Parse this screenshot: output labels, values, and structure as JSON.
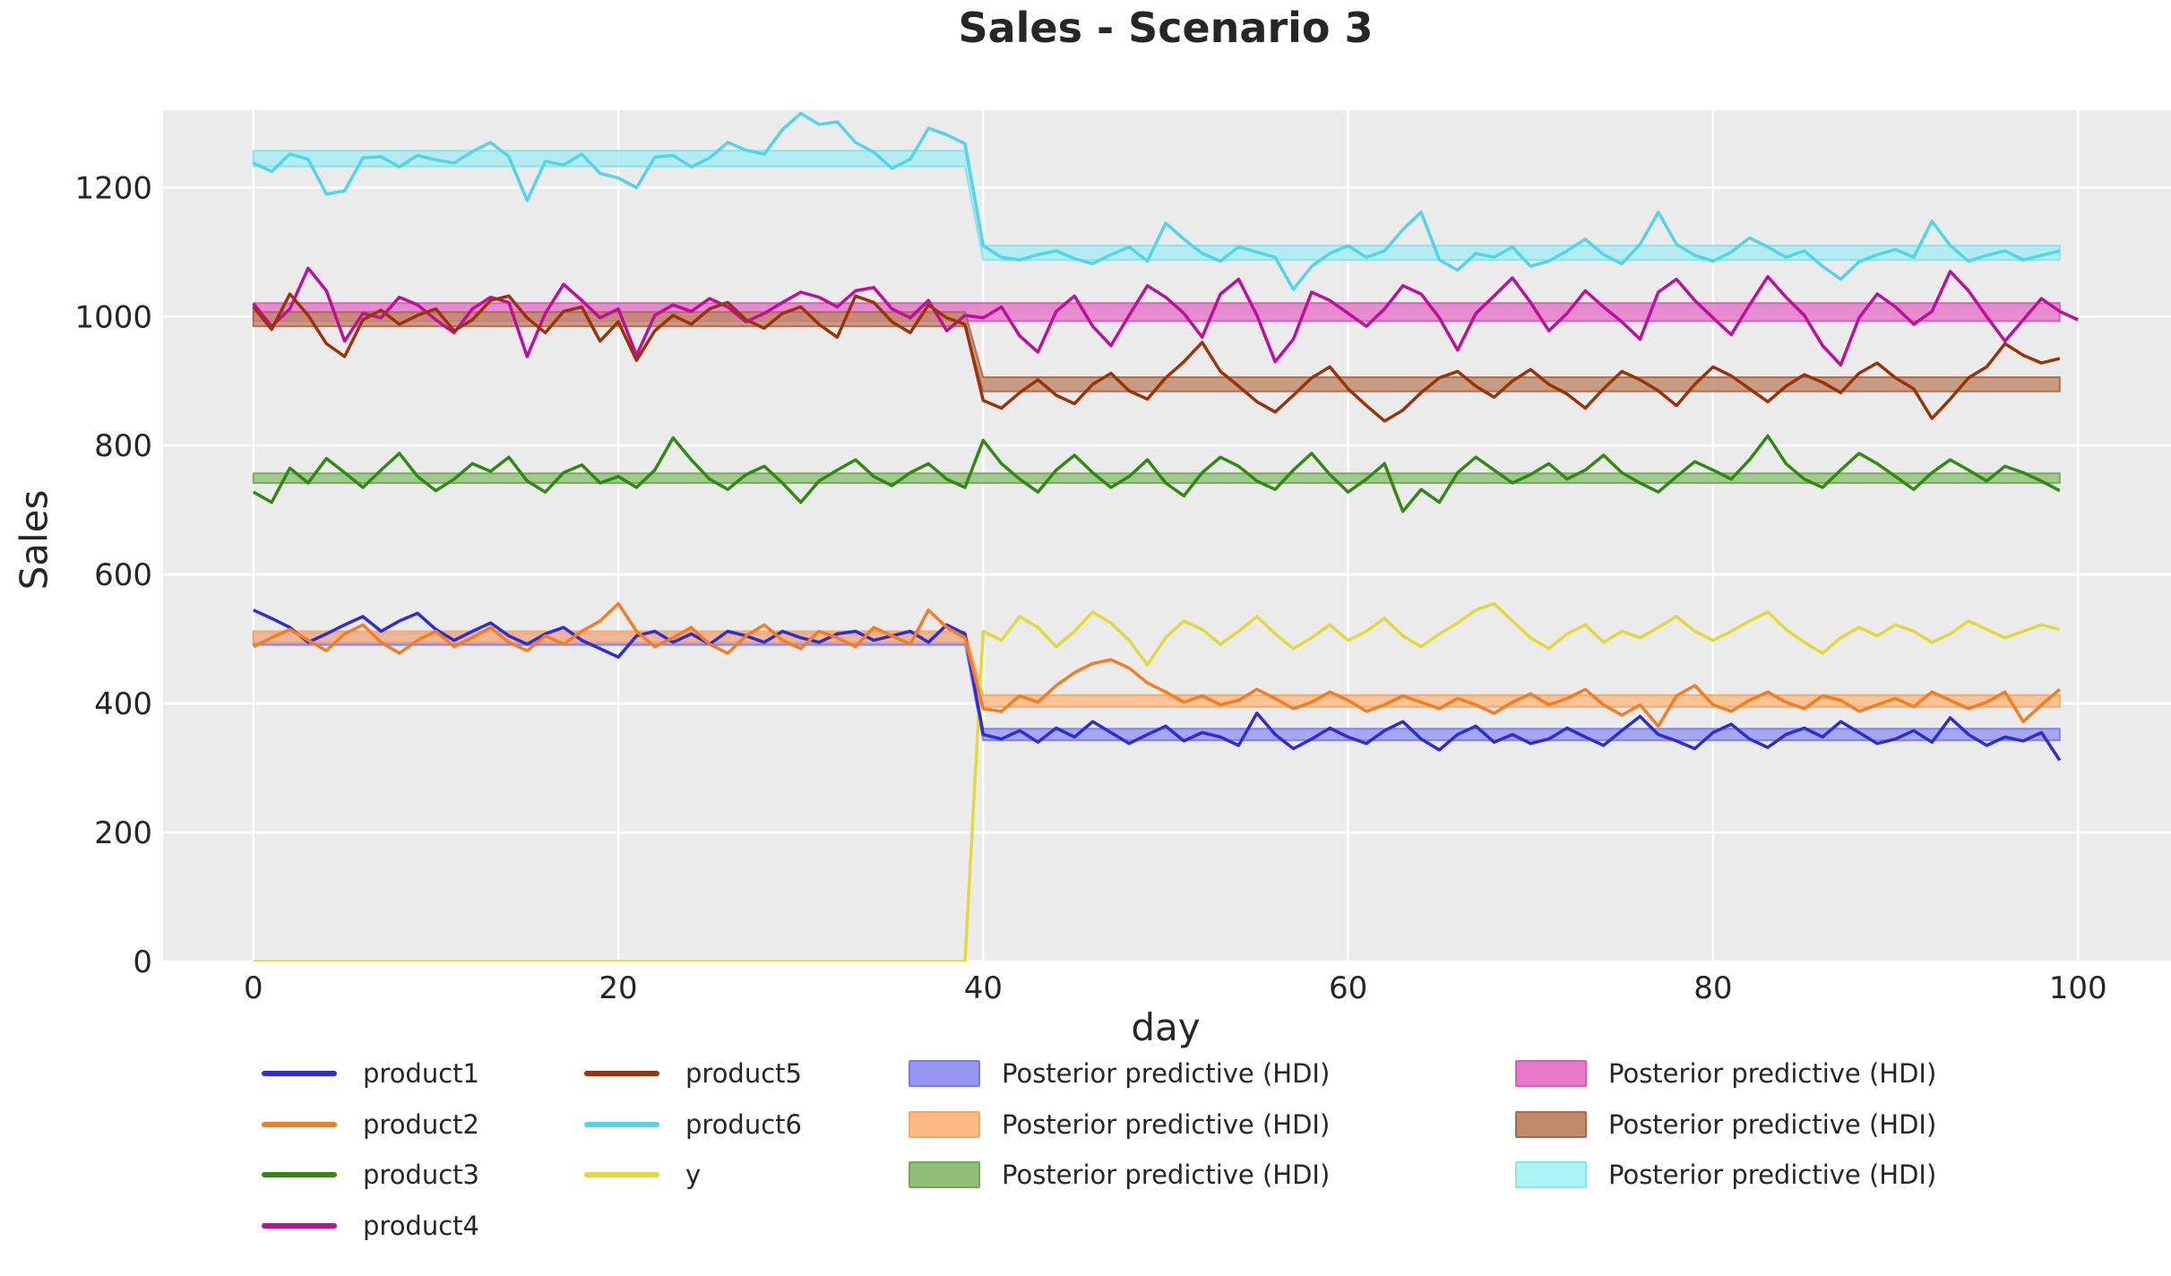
{
  "title": "Sales - Scenario 3",
  "axes": {
    "xlabel": "day",
    "ylabel": "Sales",
    "xticks": [
      0,
      20,
      40,
      60,
      80,
      100
    ],
    "yticks": [
      0,
      200,
      400,
      600,
      800,
      1000,
      1200
    ]
  },
  "colors": {
    "plot_bg": "#ebebeb",
    "grid": "#ffffff",
    "text": "#262626"
  },
  "chart_data": {
    "type": "line",
    "title": "Sales - Scenario 3",
    "xlabel": "day",
    "ylabel": "Sales",
    "xlim": [
      -4.95,
      105.1
    ],
    "ylim": [
      0,
      1320
    ],
    "xticks": [
      0,
      20,
      40,
      60,
      80,
      100
    ],
    "yticks": [
      0,
      200,
      400,
      600,
      800,
      1000,
      1200
    ],
    "grid": true,
    "legend_position": "below",
    "days": {
      "start": 0,
      "end": 99,
      "step": 1
    },
    "switch_day": 40,
    "series": [
      {
        "name": "product1",
        "color": "#2d2dd8",
        "values": [
          545,
          532,
          518,
          495,
          508,
          522,
          535,
          512,
          528,
          540,
          515,
          498,
          512,
          525,
          505,
          492,
          508,
          518,
          498,
          485,
          472,
          505,
          512,
          495,
          508,
          492,
          512,
          505,
          495,
          512,
          502,
          495,
          508,
          512,
          498,
          505,
          512,
          495,
          522,
          508,
          352,
          345,
          358,
          340,
          362,
          348,
          372,
          355,
          338,
          352,
          365,
          342,
          355,
          348,
          335,
          385,
          352,
          330,
          345,
          362,
          348,
          338,
          358,
          372,
          345,
          328,
          352,
          365,
          340,
          352,
          338,
          345,
          362,
          348,
          335,
          358,
          380,
          352,
          342,
          330,
          355,
          368,
          345,
          332,
          352,
          362,
          348,
          372,
          355,
          338,
          345,
          358,
          340,
          378,
          352,
          335,
          348,
          342,
          355,
          312
        ]
      },
      {
        "name": "product2",
        "color": "#f57d20",
        "values": [
          488,
          502,
          515,
          498,
          482,
          508,
          522,
          495,
          478,
          498,
          512,
          488,
          502,
          518,
          495,
          482,
          505,
          492,
          512,
          528,
          555,
          512,
          488,
          502,
          518,
          492,
          478,
          505,
          522,
          498,
          485,
          512,
          502,
          488,
          518,
          505,
          492,
          545,
          518,
          502,
          392,
          388,
          412,
          402,
          428,
          448,
          462,
          468,
          455,
          432,
          418,
          402,
          412,
          398,
          405,
          422,
          408,
          392,
          402,
          418,
          405,
          388,
          398,
          412,
          402,
          392,
          408,
          398,
          385,
          402,
          415,
          398,
          408,
          422,
          398,
          382,
          398,
          365,
          412,
          428,
          398,
          388,
          405,
          418,
          402,
          392,
          412,
          405,
          388,
          398,
          408,
          395,
          418,
          405,
          392,
          402,
          418,
          372,
          398,
          422
        ]
      },
      {
        "name": "product3",
        "color": "#2e8b0e",
        "values": [
          728,
          712,
          765,
          742,
          780,
          758,
          735,
          762,
          788,
          752,
          730,
          748,
          772,
          760,
          782,
          745,
          728,
          758,
          770,
          742,
          752,
          735,
          762,
          812,
          778,
          748,
          732,
          755,
          768,
          742,
          712,
          745,
          762,
          778,
          752,
          738,
          758,
          772,
          748,
          735,
          808,
          772,
          748,
          728,
          762,
          785,
          758,
          735,
          752,
          778,
          742,
          722,
          758,
          782,
          768,
          745,
          732,
          762,
          788,
          755,
          728,
          748,
          772,
          698,
          732,
          712,
          758,
          782,
          762,
          742,
          755,
          772,
          748,
          762,
          785,
          758,
          742,
          728,
          752,
          775,
          762,
          748,
          778,
          815,
          772,
          748,
          735,
          762,
          788,
          772,
          752,
          732,
          758,
          778,
          762,
          745,
          768,
          758,
          745,
          730
        ]
      },
      {
        "name": "product4",
        "color": "#c00d9e",
        "values": [
          1020,
          985,
          1012,
          1075,
          1040,
          962,
          1005,
          998,
          1030,
          1018,
          995,
          975,
          1012,
          1030,
          1022,
          938,
          1005,
          1050,
          1025,
          998,
          1012,
          940,
          1002,
          1018,
          1008,
          1028,
          1015,
          992,
          1005,
          1022,
          1038,
          1030,
          1015,
          1040,
          1045,
          1012,
          998,
          1025,
          978,
          1002,
          998,
          1015,
          970,
          945,
          1008,
          1032,
          985,
          955,
          1002,
          1048,
          1030,
          1005,
          968,
          1035,
          1058,
          1002,
          930,
          965,
          1038,
          1025,
          1005,
          985,
          1012,
          1048,
          1035,
          998,
          948,
          1005,
          1032,
          1060,
          1022,
          978,
          1005,
          1040,
          1015,
          992,
          965,
          1038,
          1058,
          1025,
          998,
          972,
          1018,
          1062,
          1030,
          1002,
          955,
          925,
          998,
          1035,
          1015,
          988,
          1008,
          1070,
          1040,
          1000,
          962,
          995,
          1028,
          1008,
          995
        ]
      },
      {
        "name": "product5",
        "color": "#9c3306",
        "values": [
          1015,
          980,
          1035,
          1002,
          958,
          938,
          995,
          1010,
          988,
          1002,
          1012,
          978,
          995,
          1025,
          1032,
          998,
          975,
          1008,
          1015,
          962,
          992,
          932,
          978,
          1002,
          988,
          1012,
          1022,
          995,
          982,
          1005,
          1015,
          988,
          968,
          1032,
          1022,
          992,
          975,
          1018,
          998,
          988,
          870,
          858,
          882,
          902,
          878,
          865,
          895,
          912,
          885,
          872,
          905,
          930,
          960,
          915,
          892,
          868,
          852,
          878,
          905,
          922,
          888,
          862,
          838,
          855,
          882,
          905,
          915,
          892,
          875,
          900,
          918,
          895,
          880,
          858,
          888,
          915,
          902,
          885,
          862,
          895,
          922,
          908,
          888,
          868,
          892,
          910,
          898,
          882,
          912,
          928,
          905,
          888,
          842,
          872,
          905,
          922,
          958,
          940,
          928,
          935
        ]
      },
      {
        "name": "product6",
        "color": "#50d5e9",
        "values": [
          1238,
          1225,
          1252,
          1244,
          1190,
          1195,
          1246,
          1248,
          1232,
          1250,
          1243,
          1238,
          1256,
          1270,
          1248,
          1180,
          1241,
          1235,
          1252,
          1222,
          1215,
          1200,
          1247,
          1250,
          1232,
          1246,
          1270,
          1258,
          1252,
          1290,
          1315,
          1298,
          1302,
          1270,
          1255,
          1230,
          1244,
          1292,
          1282,
          1268,
          1110,
          1092,
          1088,
          1096,
          1102,
          1090,
          1082,
          1096,
          1108,
          1086,
          1145,
          1120,
          1098,
          1086,
          1108,
          1100,
          1092,
          1042,
          1078,
          1098,
          1110,
          1092,
          1102,
          1135,
          1162,
          1088,
          1072,
          1098,
          1092,
          1108,
          1078,
          1086,
          1102,
          1120,
          1096,
          1082,
          1112,
          1162,
          1112,
          1095,
          1086,
          1100,
          1122,
          1108,
          1092,
          1102,
          1078,
          1058,
          1085,
          1096,
          1104,
          1092,
          1148,
          1110,
          1086,
          1095,
          1102,
          1088,
          1095,
          1102
        ]
      },
      {
        "name": "y",
        "color": "#e2d93b",
        "values": [
          0,
          0,
          0,
          0,
          0,
          0,
          0,
          0,
          0,
          0,
          0,
          0,
          0,
          0,
          0,
          0,
          0,
          0,
          0,
          0,
          0,
          0,
          0,
          0,
          0,
          0,
          0,
          0,
          0,
          0,
          0,
          0,
          0,
          0,
          0,
          0,
          0,
          0,
          0,
          0,
          512,
          498,
          535,
          518,
          488,
          512,
          542,
          525,
          498,
          460,
          502,
          528,
          515,
          492,
          512,
          535,
          508,
          485,
          502,
          522,
          498,
          512,
          532,
          505,
          488,
          508,
          525,
          545,
          555,
          528,
          502,
          485,
          508,
          522,
          495,
          512,
          502,
          518,
          535,
          512,
          498,
          512,
          528,
          542,
          515,
          495,
          478,
          502,
          518,
          505,
          522,
          512,
          495,
          508,
          528,
          515,
          502,
          512,
          522,
          515
        ]
      }
    ],
    "bands": [
      {
        "name": "Posterior predictive (HDI)",
        "series": "product1",
        "fill": "#9697f3",
        "edge": "#7a7cf0",
        "pre": [
          491,
          509
        ],
        "post": [
          343,
          361
        ]
      },
      {
        "name": "Posterior predictive (HDI)",
        "series": "product2",
        "fill": "#fcba85",
        "edge": "#f9a45c",
        "pre": [
          495,
          512
        ],
        "post": [
          395,
          413
        ]
      },
      {
        "name": "Posterior predictive (HDI)",
        "series": "product3",
        "fill": "#90c077",
        "edge": "#6faa52",
        "pre": [
          742,
          757
        ],
        "post": [
          742,
          757
        ]
      },
      {
        "name": "Posterior predictive (HDI)",
        "series": "product4",
        "fill": "#e276c6",
        "edge": "#d958ba",
        "pre": [
          993,
          1021
        ],
        "post": [
          993,
          1021
        ]
      },
      {
        "name": "Posterior predictive (HDI)",
        "series": "product5",
        "fill": "#c08a6a",
        "edge": "#ad6848",
        "pre": [
          985,
          1007
        ],
        "post": [
          884,
          906
        ]
      },
      {
        "name": "Posterior predictive (HDI)",
        "series": "product6",
        "fill": "#a8ecf3",
        "edge": "#7fe3ee",
        "pre": [
          1233,
          1257
        ],
        "post": [
          1088,
          1110
        ]
      }
    ]
  },
  "legend": {
    "columns": [
      [
        {
          "label": "product1",
          "swatch": "line",
          "color": "#2d2dd8"
        },
        {
          "label": "product2",
          "swatch": "line",
          "color": "#f57d20"
        },
        {
          "label": "product3",
          "swatch": "line",
          "color": "#2e8b0e"
        },
        {
          "label": "product4",
          "swatch": "line",
          "color": "#c00d9e"
        }
      ],
      [
        {
          "label": "product5",
          "swatch": "line",
          "color": "#9c3306"
        },
        {
          "label": "product6",
          "swatch": "line",
          "color": "#50d5e9"
        },
        {
          "label": "y",
          "swatch": "line",
          "color": "#e2d93b"
        }
      ],
      [
        {
          "label": "Posterior predictive (HDI)",
          "swatch": "patch",
          "color": "#9697f3",
          "edge": "#777af0"
        },
        {
          "label": "Posterior predictive (HDI)",
          "swatch": "patch",
          "color": "#fcba85",
          "edge": "#fba55e"
        },
        {
          "label": "Posterior predictive (HDI)",
          "swatch": "patch",
          "color": "#90c077",
          "edge": "#6faa52"
        }
      ],
      [
        {
          "label": "Posterior predictive (HDI)",
          "swatch": "patch",
          "color": "#e678c8",
          "edge": "#e058bc"
        },
        {
          "label": "Posterior predictive (HDI)",
          "swatch": "patch",
          "color": "#c08a6a",
          "edge": "#ad6848"
        },
        {
          "label": "Posterior predictive (HDI)",
          "swatch": "patch",
          "color": "#aff2f5",
          "edge": "#7fe9f0"
        }
      ]
    ]
  }
}
